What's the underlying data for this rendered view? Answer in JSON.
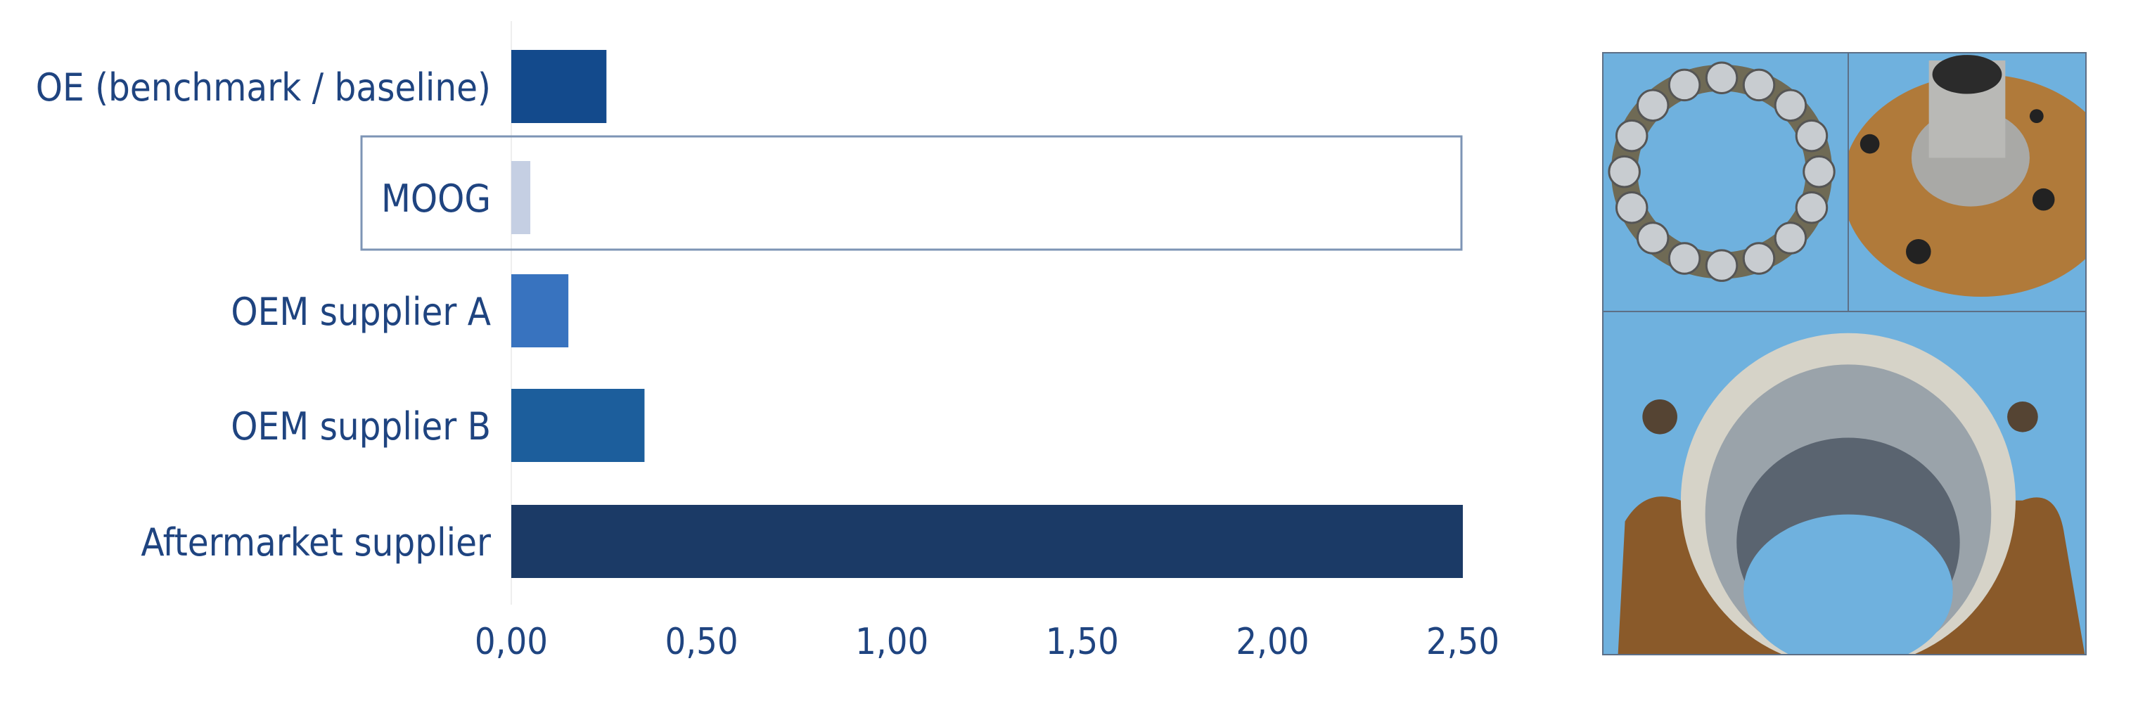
{
  "chart_data": {
    "type": "bar",
    "orientation": "horizontal",
    "categories": [
      "OE (benchmark / baseline)",
      "MOOG",
      "OEM supplier A",
      "OEM supplier B",
      "Aftermarket supplier"
    ],
    "values": [
      0.25,
      0.05,
      0.15,
      0.35,
      2.5
    ],
    "colors": [
      "#134a8c",
      "#c5cfe3",
      "#3873bf",
      "#1c5e9c",
      "#1b3a66"
    ],
    "highlighted_category": "MOOG",
    "xlim": [
      0,
      2.5
    ],
    "xticks": [
      "0,00",
      "0,50",
      "1,00",
      "1,50",
      "2,00",
      "2,50"
    ],
    "xtick_values": [
      0,
      0.5,
      1,
      1.5,
      2,
      2.5
    ],
    "grid": false,
    "title": "",
    "xlabel": "",
    "ylabel": ""
  },
  "text_color": "#1f4480",
  "photos": [
    {
      "subject": "bearing ball cage"
    },
    {
      "subject": "rusted wheel hub flange"
    },
    {
      "subject": "worn bearing housing"
    }
  ]
}
